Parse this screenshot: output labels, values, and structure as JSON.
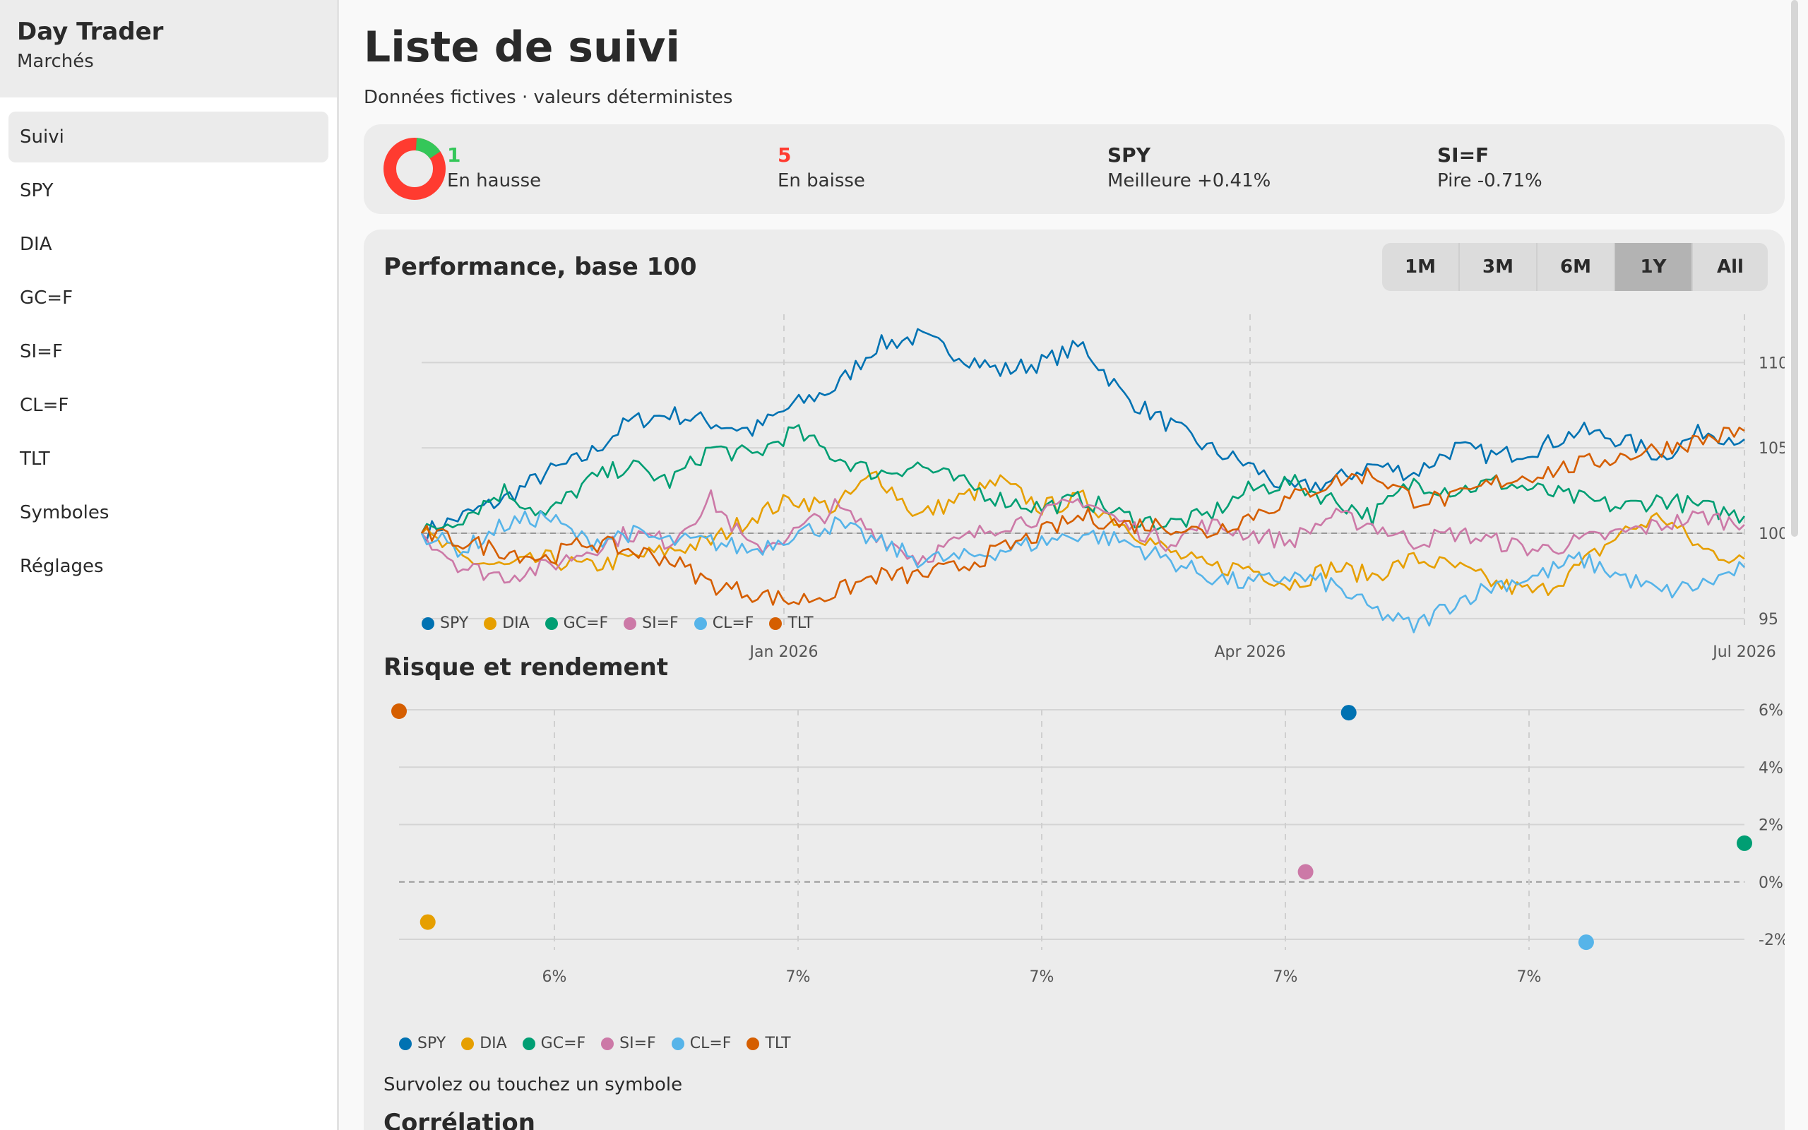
{
  "app": {
    "name": "Day Trader",
    "section": "Marchés"
  },
  "nav": {
    "items": [
      {
        "label": "Suivi",
        "active": true
      },
      {
        "label": "SPY",
        "active": false
      },
      {
        "label": "DIA",
        "active": false
      },
      {
        "label": "GC=F",
        "active": false
      },
      {
        "label": "SI=F",
        "active": false
      },
      {
        "label": "CL=F",
        "active": false
      },
      {
        "label": "TLT",
        "active": false
      },
      {
        "label": "Symboles",
        "active": false
      },
      {
        "label": "Réglages",
        "active": false
      }
    ]
  },
  "page": {
    "title": "Liste de suivi",
    "subtitle": "Données fictives · valeurs déterministes"
  },
  "summary": {
    "up_count": "1",
    "up_label": "En hausse",
    "down_count": "5",
    "down_label": "En baisse",
    "best_symbol": "SPY",
    "best_label": "Meilleure +0.41%",
    "worst_symbol": "SI=F",
    "worst_label": "Pire -0.71%",
    "colors": {
      "up": "#34c759",
      "down": "#ff3b30"
    }
  },
  "ranges": {
    "options": [
      "1M",
      "3M",
      "6M",
      "1Y",
      "All"
    ],
    "selected": "1Y"
  },
  "colors": {
    "SPY": "#0072b2",
    "DIA": "#e69f00",
    "GC=F": "#009e73",
    "SI=F": "#cc79a7",
    "CL=F": "#56b4e9",
    "TLT": "#d55e00"
  },
  "performance": {
    "title": "Performance, base 100",
    "y_ticks": [
      "110",
      "105",
      "100",
      "95"
    ],
    "x_ticks": [
      "Jan 2026",
      "Apr 2026",
      "Jul 2026"
    ]
  },
  "risk": {
    "title": "Risque et rendement",
    "y_ticks": [
      "6%",
      "4%",
      "2%",
      "0%",
      "-2%"
    ],
    "x_ticks": [
      "6%",
      "7%",
      "7%",
      "7%",
      "7%"
    ]
  },
  "hover_hint": "Survolez ou touchez un symbole",
  "correlation": {
    "title": "Corrélation"
  },
  "chart_data": [
    {
      "type": "line",
      "title": "Performance, base 100",
      "x_range": [
        "Sep 2025",
        "Jul 2026"
      ],
      "ylim": [
        94,
        112
      ],
      "baseline": 100,
      "grid": true,
      "legend": "bottom-left",
      "series": [
        {
          "name": "SPY",
          "values": [
            100,
            101,
            102,
            103.5,
            104.5,
            106.5,
            107,
            106.5,
            106,
            107.5,
            108.5,
            111,
            111.5,
            110.5,
            109.5,
            110,
            111,
            108,
            106.5,
            105,
            104,
            102.5,
            103,
            104,
            103.5,
            105,
            104.5,
            105,
            106,
            105.5,
            104.5,
            106,
            105.5
          ]
        },
        {
          "name": "DIA",
          "values": [
            100,
            98.5,
            98,
            98.5,
            98,
            98.5,
            99,
            99.5,
            101,
            102,
            101.5,
            103.5,
            101,
            102,
            103,
            101.5,
            102,
            100.5,
            99,
            98,
            98,
            97,
            98,
            97.5,
            98.5,
            98,
            97,
            96.5,
            98,
            100,
            101,
            99,
            98.5
          ]
        },
        {
          "name": "GC=F",
          "values": [
            100,
            101,
            102.5,
            101,
            103,
            104,
            103,
            105,
            104.5,
            106,
            104.5,
            103.5,
            104,
            103,
            102,
            101.5,
            102,
            101,
            100.5,
            101,
            102.5,
            103,
            102,
            101,
            103,
            102.5,
            103,
            102.5,
            102,
            101.5,
            102,
            101.5,
            101
          ]
        },
        {
          "name": "SI=F",
          "values": [
            100,
            98,
            97.5,
            98,
            99,
            100,
            99.5,
            102,
            99,
            100,
            101.5,
            100,
            98.5,
            99.5,
            100.5,
            101,
            102,
            100.5,
            99.5,
            100.5,
            100,
            99.5,
            101,
            100.5,
            99.5,
            100,
            99.5,
            99,
            99.5,
            100,
            100.5,
            101,
            100.5
          ]
        },
        {
          "name": "CL=F",
          "values": [
            100,
            99,
            100.5,
            101,
            99.5,
            100,
            99.5,
            99.5,
            99,
            100,
            100.5,
            99.5,
            98.5,
            98.5,
            99,
            99.5,
            100,
            99.5,
            98.5,
            97.5,
            97,
            97.5,
            97,
            95.5,
            94.5,
            96,
            97,
            97.5,
            98.5,
            97.5,
            96.5,
            97,
            98
          ]
        },
        {
          "name": "TLT",
          "values": [
            100,
            99.5,
            99,
            98.5,
            99.5,
            99,
            98.5,
            97,
            96.5,
            96,
            96.5,
            97.5,
            97.5,
            98,
            99,
            100,
            101,
            100.5,
            100.5,
            100,
            101,
            102,
            103,
            103.5,
            102,
            102,
            103,
            103.5,
            104,
            104.5,
            105,
            105.5,
            106
          ]
        }
      ]
    },
    {
      "type": "scatter",
      "title": "Risque et rendement",
      "xlabel": "",
      "ylabel": "",
      "legend": "bottom-left",
      "grid": true,
      "ylim": [
        -2.5,
        6
      ],
      "points": [
        {
          "name": "SPY",
          "risk": 6.97,
          "return": 5.9
        },
        {
          "name": "DIA",
          "risk": 5.69,
          "return": -1.4
        },
        {
          "name": "GC=F",
          "risk": 7.52,
          "return": 1.35
        },
        {
          "name": "SI=F",
          "risk": 6.91,
          "return": 0.35
        },
        {
          "name": "CL=F",
          "risk": 7.3,
          "return": -2.1
        },
        {
          "name": "TLT",
          "risk": 5.65,
          "return": 5.95
        }
      ]
    }
  ]
}
